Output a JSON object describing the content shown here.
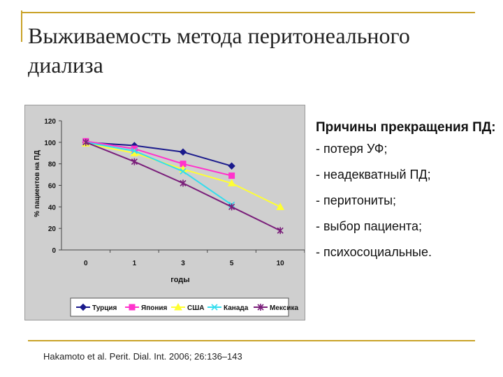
{
  "slide": {
    "title": "Выживаемость метода перитонеального диализа",
    "reasons_title": "Причины прекращения ПД:",
    "reasons": [
      "- потеря УФ;",
      "- неадекватный ПД;",
      "- перитониты;",
      "- выбор пациента;",
      "- психосоциальные."
    ],
    "citation": "Hakamoto et al. Perit. Dial. Int. 2006; 26:136–143",
    "accent_color": "#c9a227"
  },
  "chart_data": {
    "type": "line",
    "categories": [
      "0",
      "1",
      "3",
      "5",
      "10"
    ],
    "xlabel": "годы",
    "ylabel": "% пациентов на ПД",
    "ylim": [
      0,
      120
    ],
    "yticks": [
      0,
      20,
      40,
      60,
      80,
      100,
      120
    ],
    "legend_position": "bottom",
    "grid": false,
    "series": [
      {
        "name": "Турция",
        "color": "#1a1a8c",
        "marker": "diamond",
        "values": [
          100,
          97,
          91,
          78,
          null
        ]
      },
      {
        "name": "Япония",
        "color": "#ff33cc",
        "marker": "square",
        "values": [
          101,
          94,
          80,
          69,
          null
        ]
      },
      {
        "name": "США",
        "color": "#ffff33",
        "marker": "triangle",
        "values": [
          99,
          90,
          75,
          62,
          40
        ]
      },
      {
        "name": "Канада",
        "color": "#33ddee",
        "marker": "x",
        "values": [
          100,
          92,
          73,
          42,
          null
        ]
      },
      {
        "name": "Мексика",
        "color": "#7a1f7a",
        "marker": "star",
        "values": [
          100,
          82,
          62,
          40,
          18
        ]
      }
    ]
  }
}
